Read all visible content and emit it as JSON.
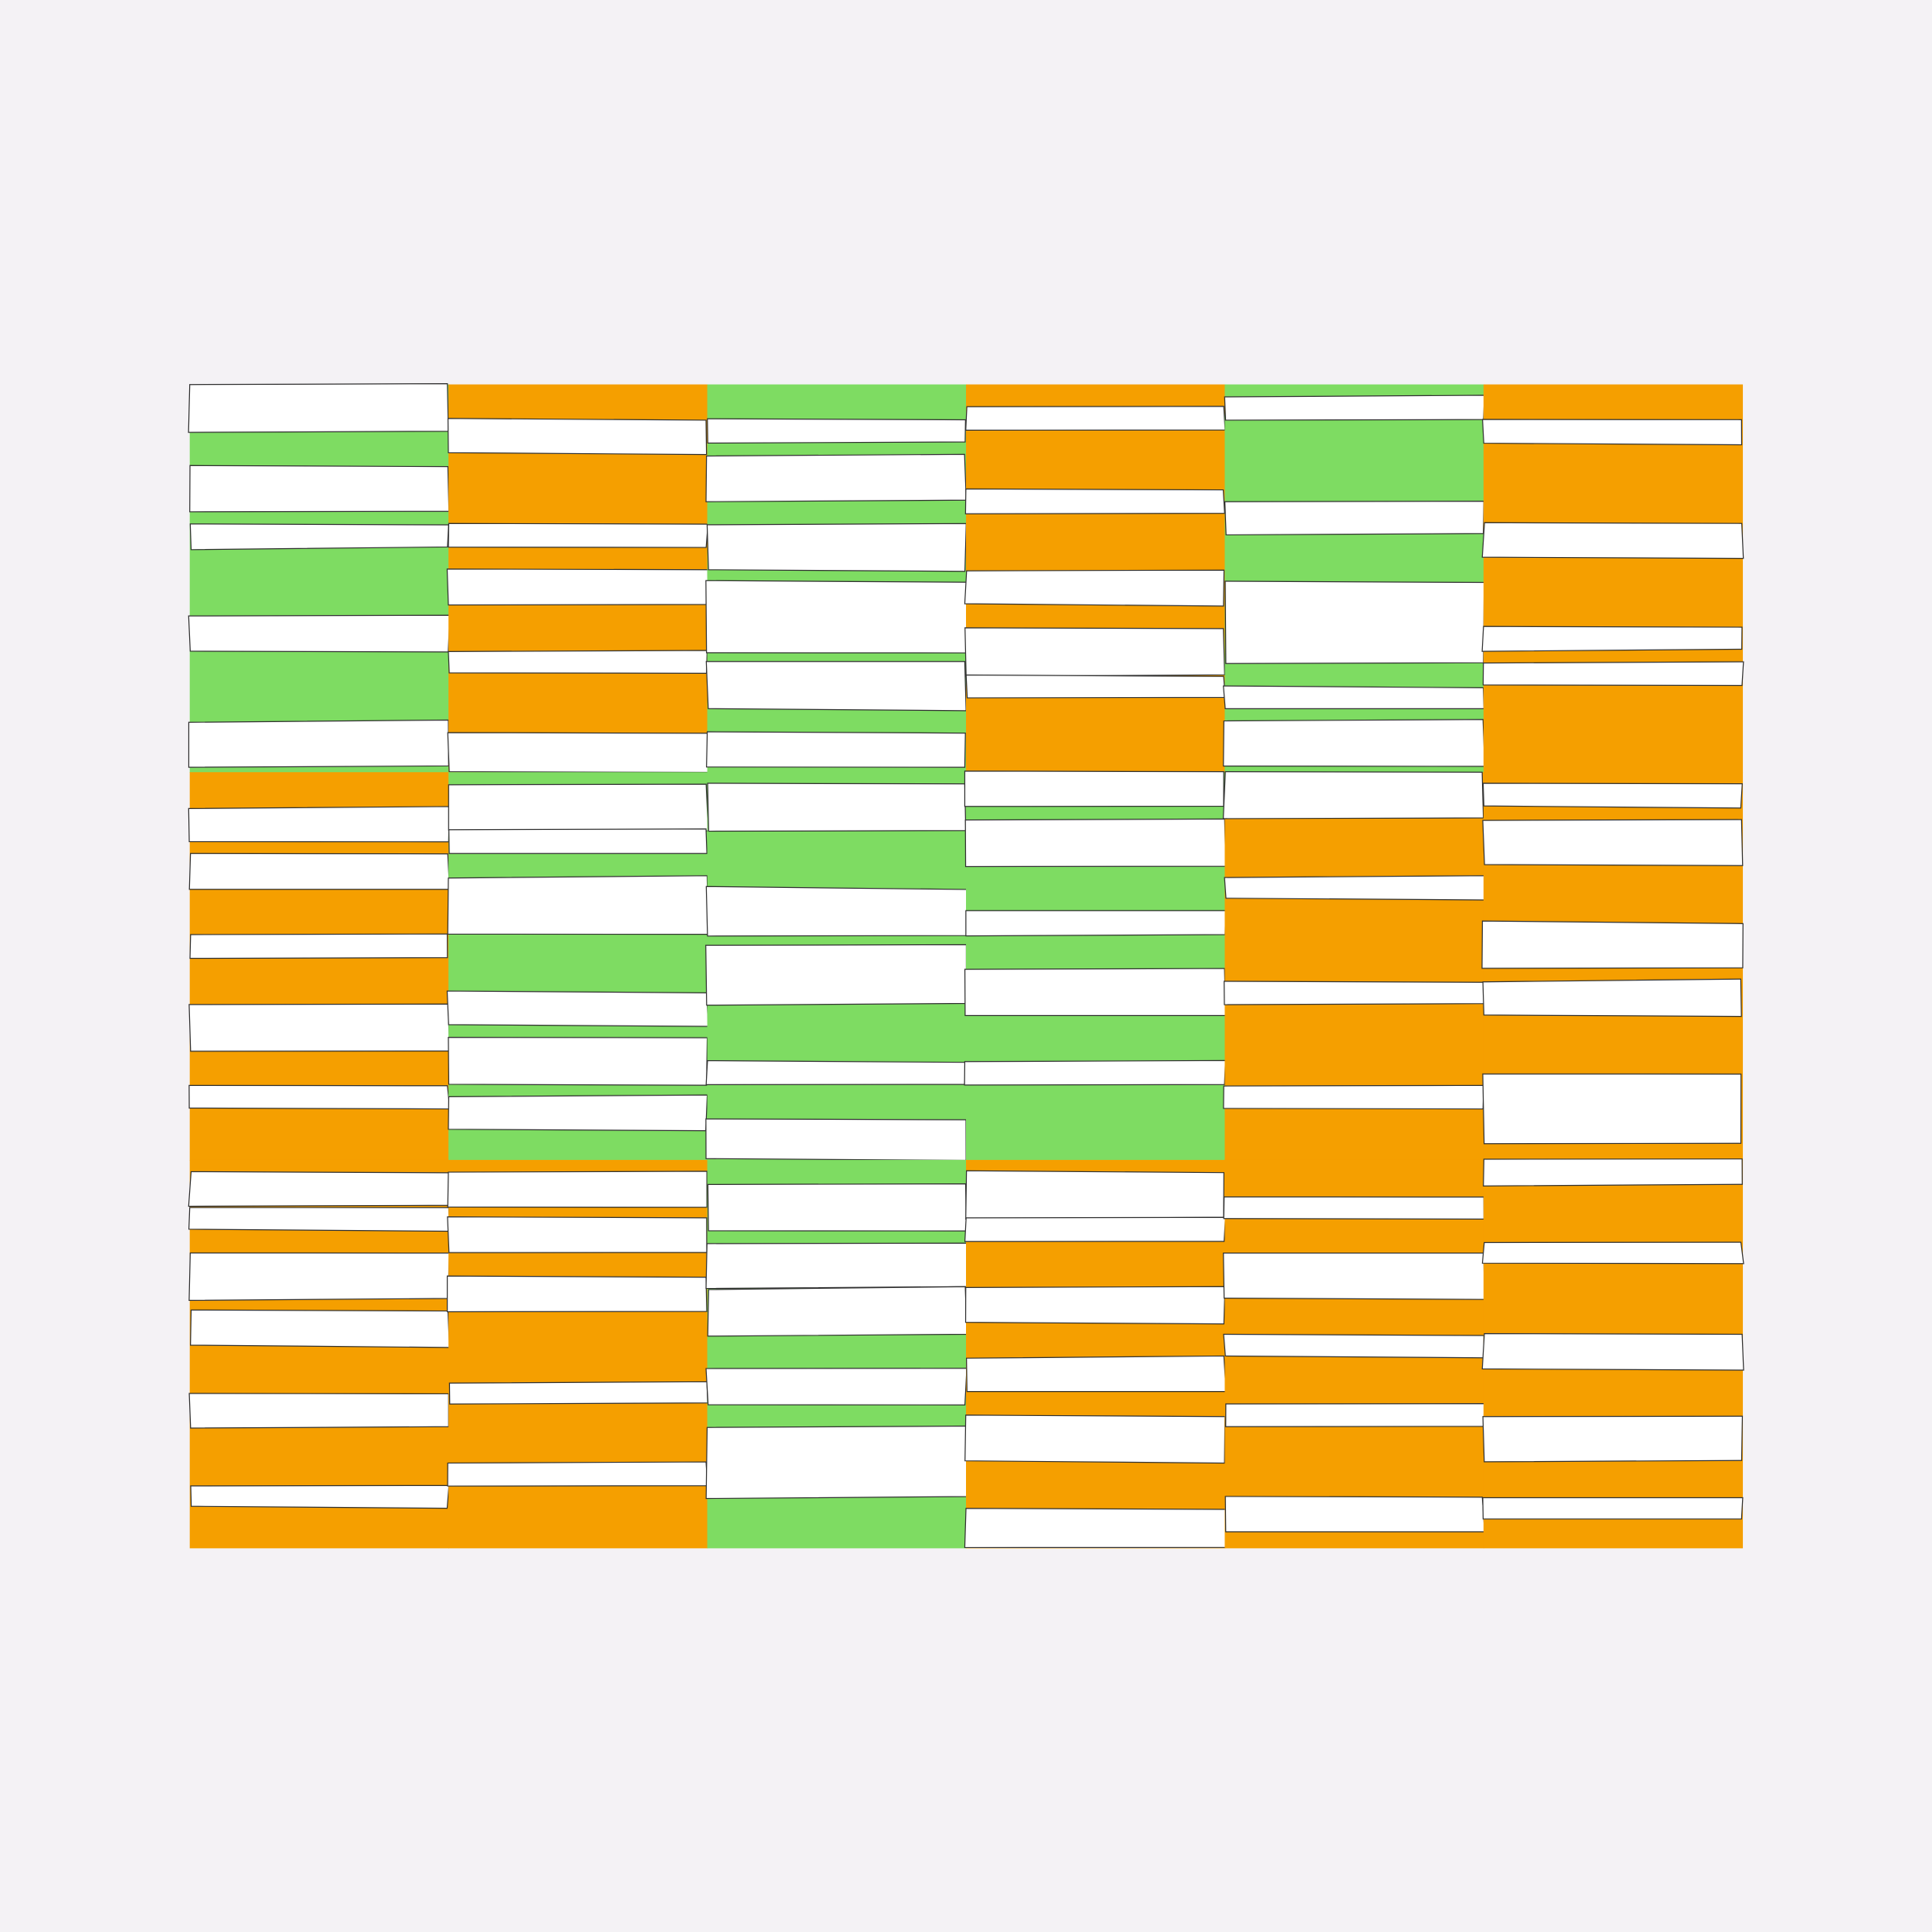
{
  "artwork": {
    "grid_columns": 6,
    "grid_rows": 3,
    "colors": {
      "background": "#f4f2f5",
      "green": "#7edc62",
      "orange": "#f59f00",
      "bar": "#ffffff",
      "outline": "#333333"
    },
    "tile_colors": [
      [
        "green",
        "orange",
        "green",
        "orange",
        "green",
        "orange"
      ],
      [
        "orange",
        "green",
        "green",
        "green",
        "orange",
        "orange"
      ],
      [
        "orange",
        "orange",
        "green",
        "orange",
        "orange",
        "orange"
      ]
    ]
  }
}
